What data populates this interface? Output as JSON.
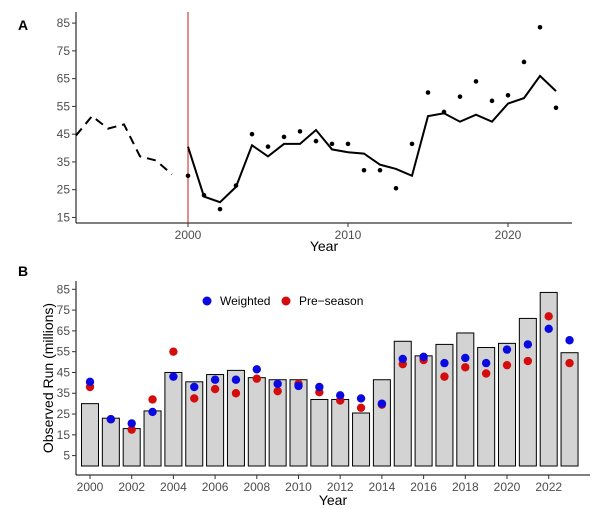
{
  "colors": {
    "weighted": "#0a0ae0",
    "preseason": "#d40c0c",
    "bar_fill": "#d3d3d3",
    "vline": "#cc1a1a",
    "line": "#000000"
  },
  "chart_data": [
    {
      "panel": "A",
      "type": "line",
      "xlabel": "Year",
      "ylabel": "",
      "xlim": [
        1993,
        2024
      ],
      "ylim": [
        13,
        89
      ],
      "xticks": [
        2000,
        2010,
        2020
      ],
      "yticks": [
        15,
        25,
        35,
        45,
        55,
        65,
        75,
        85
      ],
      "vline_x": 2000,
      "dashed_line": {
        "x": [
          1993,
          1994,
          1995,
          1996,
          1997,
          1998,
          1999
        ],
        "y": [
          44.5,
          51.5,
          47,
          48.5,
          37,
          35.5,
          30.5
        ]
      },
      "solid_line": {
        "x": [
          2000,
          2001,
          2002,
          2003,
          2004,
          2005,
          2006,
          2007,
          2008,
          2009,
          2010,
          2011,
          2012,
          2013,
          2014,
          2015,
          2016,
          2017,
          2018,
          2019,
          2020,
          2021,
          2022,
          2023
        ],
        "y": [
          40.5,
          22.5,
          20.5,
          26,
          41,
          37,
          41.5,
          41.5,
          46.5,
          39.5,
          38.5,
          38,
          34,
          32.5,
          30,
          51.5,
          52.5,
          49.5,
          52,
          49.5,
          56,
          58,
          66,
          60.5
        ]
      },
      "points": {
        "x": [
          2000,
          2001,
          2002,
          2003,
          2004,
          2005,
          2006,
          2007,
          2008,
          2009,
          2010,
          2011,
          2012,
          2013,
          2014,
          2015,
          2016,
          2017,
          2018,
          2019,
          2020,
          2021,
          2022,
          2023
        ],
        "y": [
          30,
          23,
          18,
          26.5,
          45,
          40.5,
          44,
          46,
          42.5,
          41.5,
          41.5,
          32,
          32,
          25.5,
          41.5,
          60,
          53,
          58.5,
          64,
          57,
          59,
          71,
          83.5,
          54.5
        ]
      }
    },
    {
      "panel": "B",
      "type": "bar",
      "xlabel": "Year",
      "ylabel": "Observed Run (millions)",
      "ylim": [
        0,
        89
      ],
      "yticks": [
        5,
        15,
        25,
        35,
        45,
        55,
        65,
        75,
        85
      ],
      "xticks": [
        2000,
        2002,
        2004,
        2006,
        2008,
        2010,
        2012,
        2014,
        2016,
        2018,
        2020,
        2022
      ],
      "legend": {
        "placement": "top-left",
        "items": [
          "Weighted",
          "Pre−season"
        ]
      },
      "categories": [
        2000,
        2001,
        2002,
        2003,
        2004,
        2005,
        2006,
        2007,
        2008,
        2009,
        2010,
        2011,
        2012,
        2013,
        2014,
        2015,
        2016,
        2017,
        2018,
        2019,
        2020,
        2021,
        2022,
        2023
      ],
      "bars": [
        30,
        23,
        18,
        26.5,
        45,
        40.5,
        44,
        46,
        42.5,
        41.5,
        41.5,
        32,
        32,
        25.5,
        41.5,
        60,
        53,
        58.5,
        64,
        57,
        59,
        71,
        83.5,
        54.5
      ],
      "series": [
        {
          "name": "Weighted",
          "values": [
            40.5,
            22.5,
            20.5,
            26,
            43,
            38,
            41.5,
            41.5,
            46.5,
            39.5,
            38.5,
            38,
            34,
            32.5,
            30,
            51.5,
            52.5,
            49.5,
            52,
            49.5,
            56,
            58.5,
            66,
            60.5
          ]
        },
        {
          "name": "Pre−season",
          "values": [
            38,
            22.5,
            17.5,
            32,
            55,
            32.5,
            37,
            35,
            42,
            36,
            39.5,
            35.5,
            31.5,
            28,
            29.5,
            49,
            51,
            43,
            47.5,
            44.5,
            48.5,
            50.5,
            72,
            49.5
          ]
        }
      ]
    }
  ]
}
